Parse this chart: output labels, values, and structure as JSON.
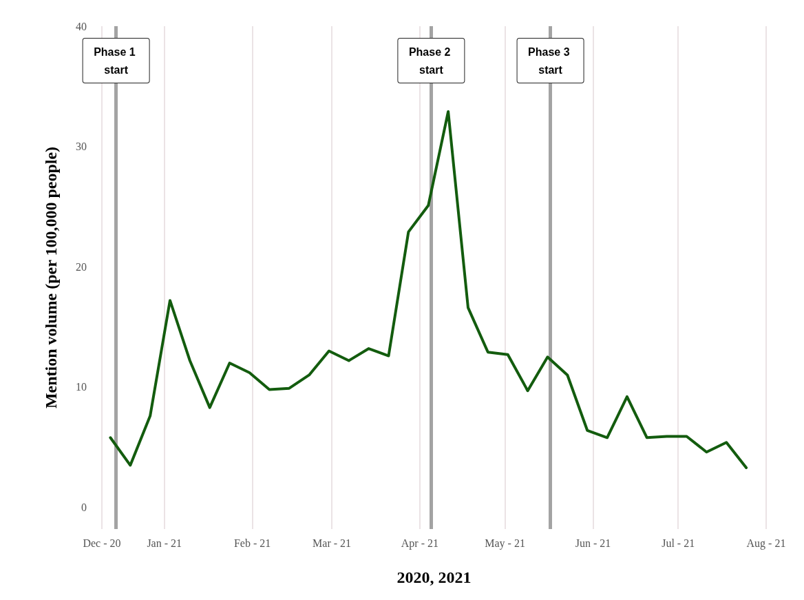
{
  "chart_data": {
    "type": "line",
    "xlabel": "2020, 2021",
    "ylabel": "Mention volume (per 100,000 people)",
    "x": [
      "2020-12-13",
      "2020-12-20",
      "2020-12-27",
      "2021-01-03",
      "2021-01-10",
      "2021-01-17",
      "2021-01-24",
      "2021-01-31",
      "2021-02-07",
      "2021-02-14",
      "2021-02-21",
      "2021-02-28",
      "2021-03-07",
      "2021-03-14",
      "2021-03-21",
      "2021-03-28",
      "2021-04-04",
      "2021-04-11",
      "2021-04-18",
      "2021-04-25",
      "2021-05-02",
      "2021-05-09",
      "2021-05-16",
      "2021-05-23",
      "2021-05-30",
      "2021-06-06",
      "2021-06-13",
      "2021-06-20",
      "2021-06-27",
      "2021-07-04",
      "2021-07-11",
      "2021-07-18",
      "2021-07-25"
    ],
    "series": [
      {
        "color": "#135c0e",
        "values": [
          5.8,
          3.5,
          7.6,
          17.2,
          12.2,
          8.3,
          12.0,
          11.2,
          9.8,
          9.9,
          11.0,
          13.0,
          12.2,
          13.2,
          12.6,
          22.9,
          25.1,
          32.9,
          16.6,
          12.9,
          12.7,
          9.7,
          12.5,
          11.0,
          6.4,
          5.8,
          9.2,
          5.8,
          5.9,
          5.9,
          4.6,
          5.4,
          3.3
        ]
      }
    ],
    "xticks": [
      {
        "value": "2020-12-10",
        "label": "Dec - 20"
      },
      {
        "value": "2021-01-01",
        "label": "Jan - 21"
      },
      {
        "value": "2021-02-01",
        "label": "Feb - 21"
      },
      {
        "value": "2021-03-01",
        "label": "Mar - 21"
      },
      {
        "value": "2021-04-01",
        "label": "Apr - 21"
      },
      {
        "value": "2021-05-01",
        "label": "May - 21"
      },
      {
        "value": "2021-06-01",
        "label": "Jun - 21"
      },
      {
        "value": "2021-07-01",
        "label": "Jul - 21"
      },
      {
        "value": "2021-08-01",
        "label": "Aug - 21"
      }
    ],
    "ylim": [
      -1.8,
      40
    ],
    "yticks": [
      0,
      10,
      20,
      30,
      40
    ],
    "xlim": [
      "2020-12-10",
      "2021-08-01"
    ],
    "grid": "x",
    "marker": "none",
    "line_style": "solid",
    "ref_lines": [
      {
        "axis": "x",
        "value": "2020-12-15",
        "label": "Phase 1 start",
        "color": "#a3a3a3"
      },
      {
        "axis": "x",
        "value": "2021-04-05",
        "label": "Phase 2 start",
        "color": "#a3a3a3"
      },
      {
        "axis": "x",
        "value": "2021-05-17",
        "label": "Phase 3 start",
        "color": "#a3a3a3"
      }
    ]
  }
}
